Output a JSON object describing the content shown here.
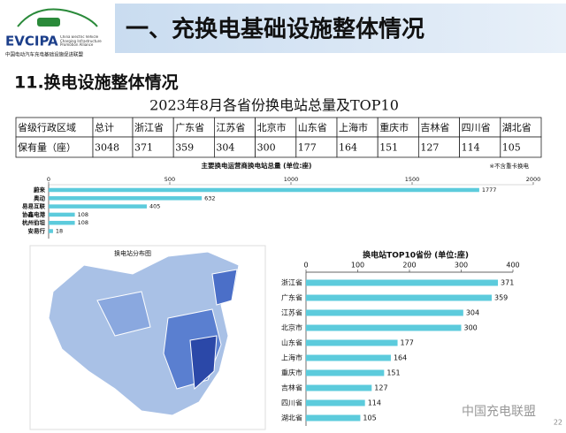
{
  "logo": {
    "name": "EVCIPA",
    "english": "China Electric Vehicle Charging Infrastructure Promotion Alliance",
    "chinese": "中国电动汽车充电基础设施促进联盟"
  },
  "header": {
    "title": "一、充换电基础设施整体情况"
  },
  "section": {
    "title": "11.换电设施整体情况"
  },
  "table": {
    "title": "2023年8月各省份换电站总量及TOP10",
    "rows": [
      [
        "省级行政区域",
        "总计",
        "浙江省",
        "广东省",
        "江苏省",
        "北京市",
        "山东省",
        "上海市",
        "重庆市",
        "吉林省",
        "四川省",
        "湖北省"
      ],
      [
        "保有量（座）",
        "3048",
        "371",
        "359",
        "304",
        "300",
        "177",
        "164",
        "151",
        "127",
        "114",
        "105"
      ]
    ]
  },
  "map": {
    "title": "换电站分布图"
  },
  "chart_data": [
    {
      "type": "bar",
      "orientation": "horizontal",
      "title": "主要换电运营商换电站总量 (单位:座)",
      "note": "※不含重卡换电",
      "categories": [
        "蔚来",
        "奥动",
        "易易互联",
        "协鑫电港",
        "杭州伯坦",
        "安易行"
      ],
      "values": [
        1777,
        632,
        405,
        108,
        108,
        18
      ],
      "color": "#5ccbdc",
      "xlim": [
        0,
        2000
      ],
      "xticks": [
        0,
        500,
        1000,
        1500,
        2000
      ]
    },
    {
      "type": "bar",
      "orientation": "horizontal",
      "title": "换电站TOP10省份 (单位:座)",
      "categories": [
        "浙江省",
        "广东省",
        "江苏省",
        "北京市",
        "山东省",
        "上海市",
        "重庆市",
        "吉林省",
        "四川省",
        "湖北省"
      ],
      "values": [
        371,
        359,
        304,
        300,
        177,
        164,
        151,
        127,
        114,
        105
      ],
      "color": "#5ccbdc",
      "xlim": [
        0,
        400
      ],
      "xticks": [
        0,
        100,
        200,
        300,
        400
      ]
    }
  ],
  "footer": {
    "watermark": "中国充电联盟",
    "page": "22"
  }
}
